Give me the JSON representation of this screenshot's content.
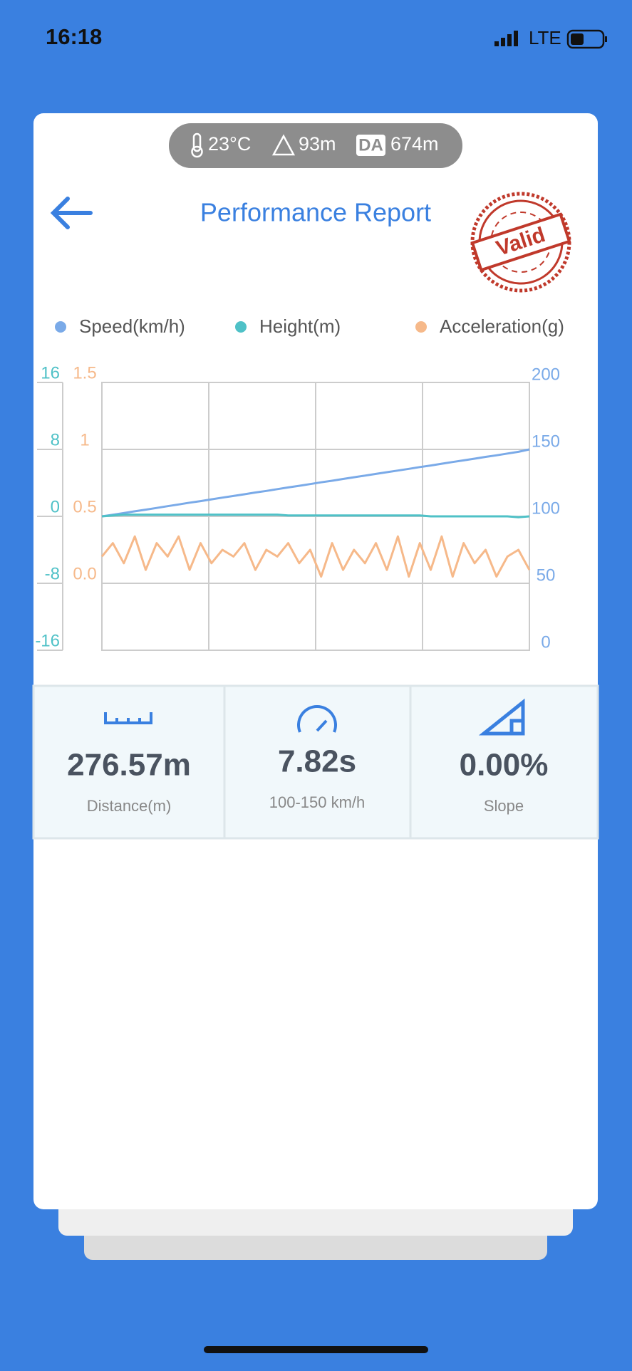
{
  "status_bar": {
    "time": "16:18",
    "network": "LTE"
  },
  "conditions": {
    "temperature": "23°C",
    "altitude": "93m",
    "da_label": "DA",
    "density_altitude": "674m"
  },
  "header": {
    "title": "Performance Report",
    "stamp": "Valid"
  },
  "chart_data": {
    "type": "line",
    "series": [
      {
        "name": "Speed(km/h)",
        "color": "#7aaae8",
        "axis": "y2",
        "values": [
          100,
          101.2,
          102.5,
          103.8,
          105,
          106.3,
          107.6,
          108.9,
          110.2,
          111.4,
          112.7,
          114,
          115.2,
          116.5,
          117.8,
          119,
          120.3,
          121.6,
          122.8,
          124.1,
          125.4,
          126.6,
          127.9,
          129.2,
          130.4,
          131.7,
          133,
          134.2,
          135.5,
          136.8,
          138,
          139.3,
          140.6,
          141.8,
          143.1,
          144.4,
          145.6,
          146.9,
          148.2,
          150
        ]
      },
      {
        "name": "Height(m)",
        "color": "#4fc1c7",
        "axis": "y",
        "values": [
          0,
          0.1,
          0.2,
          0.2,
          0.2,
          0.2,
          0.2,
          0.2,
          0.2,
          0.2,
          0.2,
          0.2,
          0.2,
          0.2,
          0.2,
          0.2,
          0.2,
          0.1,
          0.1,
          0.1,
          0.1,
          0.1,
          0.1,
          0.1,
          0.1,
          0.1,
          0.1,
          0.1,
          0.1,
          0.1,
          0,
          0,
          0,
          0,
          0,
          0,
          0,
          0,
          -0.1,
          0
        ]
      },
      {
        "name": "Acceleration(g)",
        "color": "#f6b98a",
        "axis": "y3",
        "values": [
          0.2,
          0.3,
          0.15,
          0.35,
          0.1,
          0.3,
          0.2,
          0.35,
          0.1,
          0.3,
          0.15,
          0.25,
          0.2,
          0.3,
          0.1,
          0.25,
          0.2,
          0.3,
          0.15,
          0.25,
          0.05,
          0.3,
          0.1,
          0.25,
          0.15,
          0.3,
          0.1,
          0.35,
          0.05,
          0.3,
          0.1,
          0.35,
          0.05,
          0.3,
          0.15,
          0.25,
          0.05,
          0.2,
          0.25,
          0.1
        ]
      }
    ],
    "ylim": [
      -16,
      16
    ],
    "yticks": [
      -16,
      -8,
      0,
      8,
      16
    ],
    "y2lim": [
      0,
      200
    ],
    "y2ticks": [
      0,
      50,
      100,
      150,
      200
    ],
    "y3lim": [
      -0.5,
      1.5
    ],
    "y3ticks": [
      {
        "value": 0,
        "label": "0.0"
      },
      0.5,
      1,
      1.5
    ],
    "grid": true
  },
  "stats": [
    {
      "value": "276.57m",
      "label": "Distance(m)"
    },
    {
      "value": "7.82s",
      "label": "100-150 km/h"
    },
    {
      "value": "0.00%",
      "label": "Slope"
    }
  ]
}
